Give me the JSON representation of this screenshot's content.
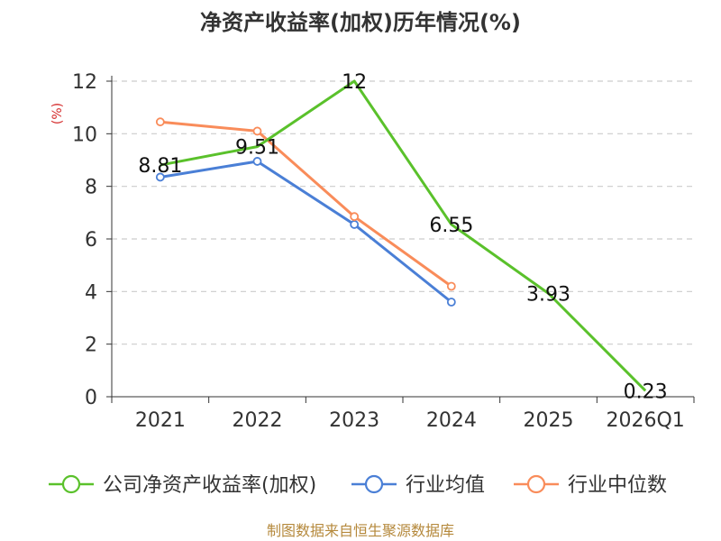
{
  "colors": {
    "company": "#5ac12b",
    "industry_avg": "#4a7fd6",
    "industry_median": "#f98c5a",
    "axis": "#333333",
    "grid": "#cccccc",
    "ylabel": "#d42a2a",
    "source": "#b5893c"
  },
  "chart_data": {
    "type": "line",
    "title": "净资产收益率(加权)历年情况(%)",
    "xlabel": "",
    "ylabel": "(%)",
    "categories": [
      "2021",
      "2022",
      "2023",
      "2024",
      "2025",
      "2026Q1"
    ],
    "ylim": [
      0,
      12
    ],
    "yticks": [
      0,
      2,
      4,
      6,
      8,
      10,
      12
    ],
    "grid": true,
    "legend_position": "bottom",
    "series": [
      {
        "name": "公司净资产收益率(加权)",
        "color_key": "company",
        "values": [
          8.81,
          9.51,
          12,
          6.55,
          3.93,
          0.23
        ],
        "labels": [
          "8.81",
          "9.51",
          "12",
          "6.55",
          "3.93",
          "0.23"
        ],
        "show_markers": false,
        "show_labels": true
      },
      {
        "name": "行业均值",
        "color_key": "industry_avg",
        "values": [
          8.35,
          8.95,
          6.55,
          3.6,
          null,
          null
        ],
        "show_markers": true,
        "show_labels": false
      },
      {
        "name": "行业中位数",
        "color_key": "industry_median",
        "values": [
          10.45,
          10.1,
          6.85,
          4.2,
          null,
          null
        ],
        "show_markers": true,
        "show_labels": false
      }
    ]
  },
  "source_text": "制图数据来自恒生聚源数据库"
}
